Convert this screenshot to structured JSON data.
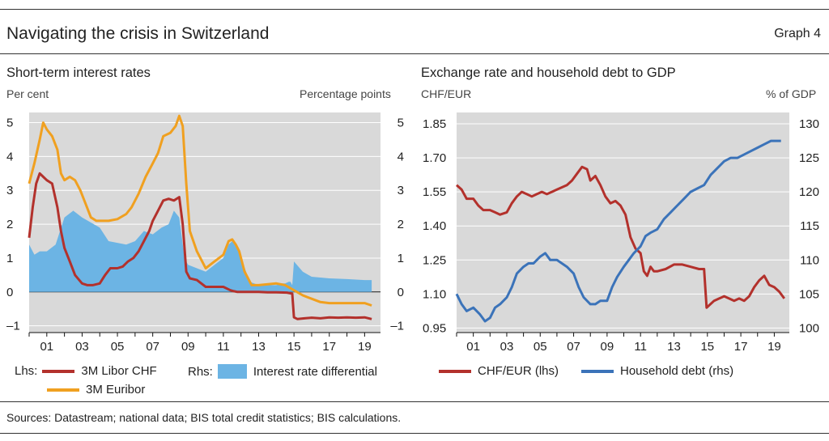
{
  "header": {
    "title": "Navigating the crisis in Switzerland",
    "graph_label": "Graph 4"
  },
  "sources": "Sources: Datastream; national data; BIS total credit statistics; BIS calculations.",
  "colors": {
    "libor_chf": "#b3312c",
    "euribor": "#f0a020",
    "differential": "#6cb4e4",
    "chf_eur": "#b3312c",
    "household_debt": "#3b73b9",
    "panel_bg": "#d9d9d9"
  },
  "left_panel": {
    "legend": {
      "lhs_label": "Lhs:",
      "rhs_label": "Rhs:"
    }
  },
  "chart_data": [
    {
      "type": "line",
      "title": "Short-term interest rates",
      "y_left_label": "Per cent",
      "y_right_label": "Percentage points",
      "x_tick_labels": [
        "01",
        "03",
        "05",
        "07",
        "09",
        "11",
        "13",
        "15",
        "17",
        "19"
      ],
      "x_ticks": [
        2001,
        2003,
        2005,
        2007,
        2009,
        2011,
        2013,
        2015,
        2017,
        2019
      ],
      "xlim": [
        2000,
        2019.9
      ],
      "ylim": [
        -1.2,
        5.3
      ],
      "y_left_ticks": [
        -1,
        0,
        1,
        2,
        3,
        4,
        5
      ],
      "y_left_tick_labels": [
        "–1",
        "0",
        "1",
        "2",
        "3",
        "4",
        "5"
      ],
      "y_right_ticks": [
        -1,
        0,
        1,
        2,
        3,
        4,
        5
      ],
      "y_right_tick_labels": [
        "–1",
        "0",
        "1",
        "2",
        "3",
        "4",
        "5"
      ],
      "grid": true,
      "legend_position": "bottom",
      "series": [
        {
          "name": "3M Libor CHF",
          "axis": "left",
          "kind": "line",
          "x": [
            2000.0,
            2000.2,
            2000.4,
            2000.6,
            2000.8,
            2001.0,
            2001.3,
            2001.6,
            2001.8,
            2002.0,
            2002.3,
            2002.6,
            2003.0,
            2003.3,
            2003.6,
            2004.0,
            2004.3,
            2004.6,
            2004.8,
            2005.0,
            2005.3,
            2005.6,
            2005.9,
            2006.2,
            2006.5,
            2006.8,
            2007.0,
            2007.3,
            2007.6,
            2007.9,
            2008.2,
            2008.5,
            2008.7,
            2008.9,
            2009.1,
            2009.5,
            2010.0,
            2010.5,
            2011.0,
            2011.4,
            2011.6,
            2011.8,
            2012.0,
            2012.5,
            2013.0,
            2013.5,
            2014.0,
            2014.6,
            2014.9,
            2015.0,
            2015.2,
            2015.6,
            2016.0,
            2016.5,
            2017.0,
            2017.5,
            2018.0,
            2018.5,
            2019.0,
            2019.4
          ],
          "y": [
            1.6,
            2.5,
            3.2,
            3.5,
            3.4,
            3.3,
            3.2,
            2.5,
            1.8,
            1.3,
            0.9,
            0.5,
            0.25,
            0.2,
            0.2,
            0.25,
            0.5,
            0.7,
            0.7,
            0.7,
            0.75,
            0.9,
            1.0,
            1.2,
            1.5,
            1.8,
            2.1,
            2.4,
            2.7,
            2.75,
            2.7,
            2.8,
            2.0,
            0.6,
            0.4,
            0.35,
            0.15,
            0.15,
            0.15,
            0.05,
            0.02,
            0.0,
            0.0,
            0.0,
            0.0,
            -0.01,
            -0.01,
            -0.02,
            -0.05,
            -0.75,
            -0.8,
            -0.78,
            -0.76,
            -0.78,
            -0.75,
            -0.76,
            -0.75,
            -0.76,
            -0.75,
            -0.8
          ]
        },
        {
          "name": "3M Euribor",
          "axis": "left",
          "kind": "line",
          "x": [
            2000.0,
            2000.3,
            2000.6,
            2000.8,
            2001.0,
            2001.3,
            2001.6,
            2001.8,
            2002.0,
            2002.3,
            2002.6,
            2002.9,
            2003.2,
            2003.5,
            2003.8,
            2004.5,
            2005.0,
            2005.5,
            2005.8,
            2006.2,
            2006.6,
            2007.0,
            2007.3,
            2007.6,
            2008.0,
            2008.3,
            2008.5,
            2008.7,
            2008.9,
            2009.1,
            2009.5,
            2010.0,
            2010.5,
            2011.0,
            2011.3,
            2011.5,
            2011.7,
            2011.9,
            2012.2,
            2012.6,
            2013.0,
            2014.0,
            2014.5,
            2015.0,
            2015.5,
            2016.0,
            2016.5,
            2017.0,
            2018.0,
            2019.0,
            2019.4
          ],
          "y": [
            3.2,
            3.8,
            4.5,
            5.0,
            4.8,
            4.6,
            4.2,
            3.5,
            3.3,
            3.4,
            3.3,
            3.0,
            2.6,
            2.2,
            2.1,
            2.1,
            2.15,
            2.3,
            2.5,
            2.9,
            3.4,
            3.8,
            4.1,
            4.6,
            4.7,
            4.9,
            5.2,
            4.9,
            3.2,
            1.8,
            1.2,
            0.7,
            0.9,
            1.1,
            1.5,
            1.55,
            1.4,
            1.2,
            0.6,
            0.2,
            0.2,
            0.25,
            0.2,
            0.05,
            -0.1,
            -0.2,
            -0.3,
            -0.33,
            -0.33,
            -0.33,
            -0.4
          ]
        },
        {
          "name": "Interest rate differential",
          "axis": "right",
          "kind": "area",
          "x": [
            2000.0,
            2000.3,
            2000.6,
            2001.0,
            2001.5,
            2002.0,
            2002.5,
            2003.0,
            2004.0,
            2004.5,
            2005.0,
            2005.5,
            2006.0,
            2006.5,
            2007.0,
            2007.5,
            2007.9,
            2008.2,
            2008.5,
            2008.8,
            2009.0,
            2009.5,
            2010.0,
            2010.5,
            2011.0,
            2011.3,
            2011.5,
            2011.7,
            2012.0,
            2012.5,
            2013.0,
            2014.0,
            2014.3,
            2014.5,
            2014.7,
            2014.8,
            2014.9,
            2015.0,
            2015.5,
            2016.0,
            2017.0,
            2018.0,
            2019.0,
            2019.4
          ],
          "y": [
            1.4,
            1.1,
            1.2,
            1.2,
            1.4,
            2.2,
            2.4,
            2.2,
            1.9,
            1.5,
            1.45,
            1.4,
            1.5,
            1.8,
            1.7,
            1.9,
            2.0,
            2.4,
            2.2,
            1.0,
            0.8,
            0.7,
            0.6,
            0.8,
            1.0,
            1.4,
            1.5,
            1.4,
            1.0,
            0.3,
            0.2,
            0.2,
            0.25,
            0.25,
            0.3,
            0.3,
            0.2,
            0.9,
            0.6,
            0.45,
            0.4,
            0.38,
            0.35,
            0.35
          ]
        }
      ]
    },
    {
      "type": "line",
      "title": "Exchange rate and household debt to GDP",
      "y_left_label": "CHF/EUR",
      "y_right_label": "% of GDP",
      "x_tick_labels": [
        "01",
        "03",
        "05",
        "07",
        "09",
        "11",
        "13",
        "15",
        "17",
        "19"
      ],
      "x_ticks": [
        2001,
        2003,
        2005,
        2007,
        2009,
        2011,
        2013,
        2015,
        2017,
        2019
      ],
      "xlim": [
        2000,
        2019.9
      ],
      "ylim_left": [
        0.93,
        1.9
      ],
      "y_left_ticks": [
        0.95,
        1.1,
        1.25,
        1.4,
        1.55,
        1.7,
        1.85
      ],
      "y_left_tick_labels": [
        "0.95",
        "1.10",
        "1.25",
        "1.40",
        "1.55",
        "1.70",
        "1.85"
      ],
      "ylim_right": [
        99.3333,
        131.6667
      ],
      "y_right_ticks": [
        100,
        105,
        110,
        115,
        120,
        125,
        130
      ],
      "y_right_tick_labels": [
        "100",
        "105",
        "110",
        "115",
        "120",
        "125",
        "130"
      ],
      "grid": true,
      "legend_position": "bottom",
      "series": [
        {
          "name": "CHF/EUR (lhs)",
          "axis": "left",
          "kind": "line",
          "x": [
            2000.0,
            2000.3,
            2000.6,
            2001.0,
            2001.3,
            2001.6,
            2002.0,
            2002.3,
            2002.6,
            2003.0,
            2003.3,
            2003.6,
            2003.9,
            2004.2,
            2004.5,
            2004.8,
            2005.1,
            2005.4,
            2005.7,
            2006.0,
            2006.3,
            2006.6,
            2006.9,
            2007.2,
            2007.5,
            2007.8,
            2008.0,
            2008.3,
            2008.6,
            2008.9,
            2009.2,
            2009.5,
            2009.8,
            2010.1,
            2010.4,
            2010.7,
            2011.0,
            2011.2,
            2011.4,
            2011.6,
            2011.8,
            2012.0,
            2012.5,
            2013.0,
            2013.5,
            2014.0,
            2014.5,
            2014.8,
            2014.95,
            2015.1,
            2015.4,
            2015.7,
            2016.0,
            2016.3,
            2016.6,
            2016.9,
            2017.2,
            2017.5,
            2017.8,
            2018.1,
            2018.4,
            2018.7,
            2019.0,
            2019.3,
            2019.6
          ],
          "y": [
            1.58,
            1.56,
            1.52,
            1.52,
            1.49,
            1.47,
            1.47,
            1.46,
            1.45,
            1.46,
            1.5,
            1.53,
            1.55,
            1.54,
            1.53,
            1.54,
            1.55,
            1.54,
            1.55,
            1.56,
            1.57,
            1.58,
            1.6,
            1.63,
            1.66,
            1.65,
            1.6,
            1.62,
            1.58,
            1.53,
            1.5,
            1.51,
            1.49,
            1.45,
            1.35,
            1.3,
            1.28,
            1.2,
            1.18,
            1.22,
            1.2,
            1.2,
            1.21,
            1.23,
            1.23,
            1.22,
            1.21,
            1.21,
            1.04,
            1.05,
            1.07,
            1.08,
            1.09,
            1.08,
            1.07,
            1.08,
            1.07,
            1.09,
            1.13,
            1.16,
            1.18,
            1.14,
            1.13,
            1.11,
            1.08
          ]
        },
        {
          "name": "Household debt (rhs)",
          "axis": "right",
          "kind": "line",
          "x": [
            2000.0,
            2000.3,
            2000.6,
            2001.0,
            2001.4,
            2001.7,
            2002.0,
            2002.3,
            2002.6,
            2003.0,
            2003.3,
            2003.6,
            2004.0,
            2004.3,
            2004.6,
            2005.0,
            2005.3,
            2005.6,
            2006.0,
            2006.3,
            2006.6,
            2007.0,
            2007.3,
            2007.6,
            2008.0,
            2008.3,
            2008.6,
            2009.0,
            2009.3,
            2009.6,
            2010.0,
            2010.3,
            2010.6,
            2011.0,
            2011.3,
            2011.6,
            2012.0,
            2012.4,
            2012.8,
            2013.2,
            2013.6,
            2014.0,
            2014.4,
            2014.8,
            2015.2,
            2015.6,
            2016.0,
            2016.4,
            2016.8,
            2017.2,
            2017.6,
            2018.0,
            2018.4,
            2018.8,
            2019.2,
            2019.4
          ],
          "y": [
            105.0,
            103.5,
            102.5,
            103.0,
            102.0,
            101.0,
            101.5,
            103.0,
            103.5,
            104.5,
            106.0,
            108.0,
            109.0,
            109.5,
            109.5,
            110.5,
            111.0,
            110.0,
            110.0,
            109.5,
            109.0,
            108.0,
            106.0,
            104.5,
            103.5,
            103.5,
            104.0,
            104.0,
            106.0,
            107.5,
            109.0,
            110.0,
            111.0,
            112.0,
            113.5,
            114.0,
            114.5,
            116.0,
            117.0,
            118.0,
            119.0,
            120.0,
            120.5,
            121.0,
            122.5,
            123.5,
            124.5,
            125.0,
            125.0,
            125.5,
            126.0,
            126.5,
            127.0,
            127.5,
            127.5,
            127.5
          ]
        }
      ]
    }
  ]
}
